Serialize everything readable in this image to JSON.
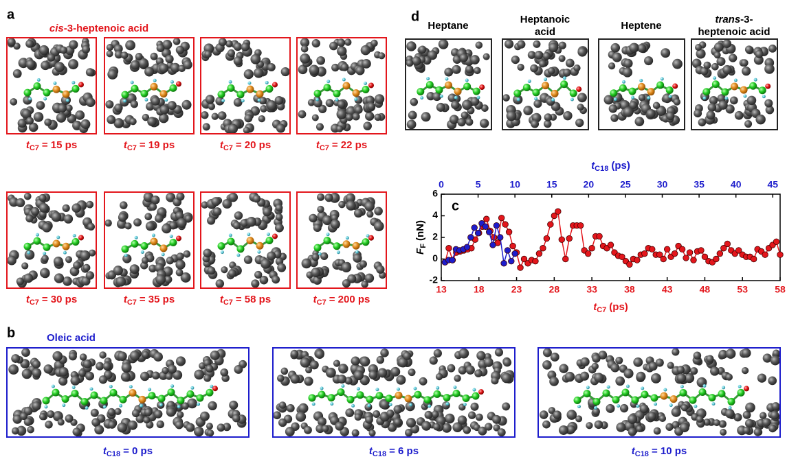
{
  "panel_a": {
    "label": "a",
    "title": {
      "italic": "cis",
      "text": "-3-heptenoic acid"
    },
    "snapshots": [
      {
        "var": "t",
        "sub": "C7",
        "text": "= 15 ps"
      },
      {
        "var": "t",
        "sub": "C7",
        "text": "= 19 ps"
      },
      {
        "var": "t",
        "sub": "C7",
        "text": "= 20 ps"
      },
      {
        "var": "t",
        "sub": "C7",
        "text": "= 22 ps"
      },
      {
        "var": "t",
        "sub": "C7",
        "text": "= 30 ps"
      },
      {
        "var": "t",
        "sub": "C7",
        "text": "= 35 ps"
      },
      {
        "var": "t",
        "sub": "C7",
        "text": "= 58 ps"
      },
      {
        "var": "t",
        "sub": "C7",
        "text": "= 200 ps"
      }
    ]
  },
  "panel_b": {
    "label": "b",
    "title": "Oleic acid",
    "snapshots": [
      {
        "var": "t",
        "sub": "C18",
        "text": "= 0 ps"
      },
      {
        "var": "t",
        "sub": "C18",
        "text": "= 6 ps"
      },
      {
        "var": "t",
        "sub": "C18",
        "text": "= 10 ps"
      }
    ]
  },
  "panel_d": {
    "label": "d",
    "snapshots": [
      {
        "lines": [
          "Heptane"
        ]
      },
      {
        "lines": [
          "Heptanoic",
          "acid"
        ]
      },
      {
        "lines": [
          "Heptene"
        ]
      },
      {
        "italic": "trans",
        "lines": [
          "-3-",
          "heptenoic acid"
        ]
      }
    ]
  },
  "chart_data": {
    "type": "line",
    "panel_label": "c",
    "xlabel": {
      "var": "t",
      "sub": "C7",
      "unit": "(ps)"
    },
    "x2label": {
      "var": "t",
      "sub": "C18",
      "unit": "(ps)"
    },
    "ylabel": {
      "var": "F",
      "sub": "F",
      "unit": "(nN)"
    },
    "xlim": [
      13,
      58
    ],
    "xticks": [
      13,
      18,
      23,
      28,
      33,
      38,
      43,
      48,
      53,
      58
    ],
    "x2lim": [
      0,
      46
    ],
    "x2ticks": [
      0,
      5,
      10,
      15,
      20,
      25,
      30,
      35,
      40,
      45
    ],
    "ylim": [
      -2,
      6
    ],
    "yticks": [
      -2,
      0,
      2,
      4,
      6
    ],
    "series": [
      {
        "color": "#e3161c",
        "x": [
          13.5,
          14,
          14.5,
          15,
          15.5,
          16,
          16.5,
          17,
          17.5,
          18,
          18.5,
          19,
          19.5,
          20,
          20.5,
          21,
          21.5,
          22,
          22.5,
          23,
          23.5,
          24,
          24.5,
          25,
          25.5,
          26,
          26.5,
          27,
          27.5,
          28,
          28.5,
          29,
          29.5,
          30,
          30.5,
          31,
          31.5,
          32,
          32.5,
          33,
          33.5,
          34,
          34.5,
          35,
          35.5,
          36,
          36.5,
          37,
          37.5,
          38,
          38.5,
          39,
          39.5,
          40,
          40.5,
          41,
          41.5,
          42,
          42.5,
          43,
          43.5,
          44,
          44.5,
          45,
          45.5,
          46,
          46.5,
          47,
          47.5,
          48,
          48.5,
          49,
          49.5,
          50,
          50.5,
          51,
          51.5,
          52,
          52.5,
          53,
          53.5,
          54,
          54.5,
          55,
          55.5,
          56,
          56.5,
          57,
          57.5,
          58
        ],
        "values": [
          -0.3,
          1.0,
          -0.1,
          0.6,
          0.7,
          0.8,
          0.9,
          1.0,
          1.8,
          2.4,
          3.0,
          3.7,
          2.6,
          2.0,
          1.5,
          3.8,
          3.2,
          2.5,
          1.2,
          0.6,
          -0.8,
          0.0,
          -0.4,
          -0.1,
          -0.2,
          0.5,
          1.0,
          1.9,
          3.2,
          4.0,
          4.4,
          1.8,
          0.0,
          1.9,
          3.1,
          3.1,
          3.1,
          0.8,
          0.5,
          1.0,
          2.1,
          2.1,
          1.2,
          1.0,
          1.3,
          0.6,
          0.3,
          0.2,
          -0.2,
          -0.5,
          0.0,
          -0.1,
          0.4,
          0.5,
          1.0,
          0.9,
          0.4,
          0.4,
          0.0,
          0.9,
          0.2,
          0.5,
          1.2,
          0.9,
          0.1,
          0.6,
          -0.1,
          0.7,
          0.8,
          0.2,
          -0.2,
          -0.3,
          0.0,
          0.5,
          1.0,
          1.4,
          0.8,
          0.5,
          0.8,
          0.4,
          0.2,
          0.2,
          0.0,
          0.9,
          0.7,
          0.4,
          1.0,
          1.3,
          1.6,
          0.4
        ]
      },
      {
        "color": "#1d1dcc",
        "axis": "x2",
        "x": [
          0.5,
          1,
          1.5,
          2,
          2.5,
          3,
          3.5,
          4,
          4.5,
          5,
          5.5,
          6,
          6.5,
          7,
          7.5,
          8,
          8.5,
          9,
          9.5,
          10
        ],
        "values": [
          -0.3,
          -0.1,
          -0.1,
          0.9,
          0.8,
          0.9,
          1.1,
          2.0,
          2.9,
          2.4,
          3.3,
          3.0,
          2.5,
          1.3,
          3.1,
          2.0,
          -0.4,
          0.8,
          -0.2,
          0.5
        ]
      }
    ]
  }
}
